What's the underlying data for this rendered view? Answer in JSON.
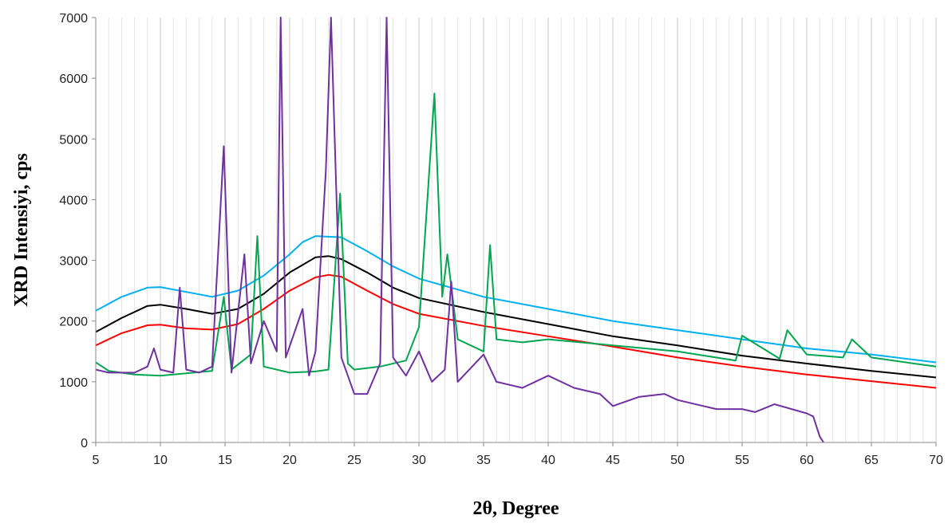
{
  "chart_data": {
    "type": "line",
    "title": "",
    "xlabel": "2θ, Degree",
    "ylabel": "XRD Intensiyi, cps",
    "xlim": [
      5,
      70
    ],
    "ylim": [
      0,
      7000
    ],
    "x_ticks": [
      5,
      10,
      15,
      20,
      25,
      30,
      35,
      40,
      45,
      50,
      55,
      60,
      65,
      70
    ],
    "y_ticks": [
      0,
      1000,
      2000,
      3000,
      4000,
      5000,
      6000,
      7000
    ],
    "x_minor_gridline_step": 1,
    "grid": "vertical",
    "legend": "none",
    "series": [
      {
        "color": "#00b0f0",
        "x": [
          5,
          7,
          9,
          10,
          12,
          14,
          16,
          18,
          20,
          21,
          22,
          24,
          26,
          28,
          30,
          35,
          40,
          45,
          50,
          55,
          60,
          65,
          70
        ],
        "values": [
          2170,
          2400,
          2550,
          2560,
          2480,
          2400,
          2500,
          2750,
          3100,
          3300,
          3400,
          3380,
          3150,
          2900,
          2700,
          2400,
          2200,
          2000,
          1850,
          1700,
          1550,
          1450,
          1320
        ]
      },
      {
        "color": "#000000",
        "x": [
          5,
          7,
          9,
          10,
          12,
          14,
          16,
          18,
          20,
          22,
          23,
          24,
          26,
          28,
          30,
          35,
          40,
          45,
          50,
          55,
          60,
          65,
          70
        ],
        "values": [
          1820,
          2050,
          2250,
          2270,
          2200,
          2120,
          2200,
          2450,
          2800,
          3050,
          3070,
          3020,
          2800,
          2550,
          2380,
          2150,
          1950,
          1750,
          1600,
          1430,
          1300,
          1180,
          1070
        ]
      },
      {
        "color": "#ff0000",
        "x": [
          5,
          7,
          9,
          10,
          12,
          14,
          16,
          18,
          20,
          22,
          23,
          24,
          26,
          28,
          30,
          35,
          40,
          45,
          50,
          55,
          60,
          65,
          70
        ],
        "values": [
          1600,
          1800,
          1930,
          1940,
          1880,
          1860,
          1950,
          2200,
          2500,
          2720,
          2760,
          2730,
          2500,
          2280,
          2120,
          1920,
          1750,
          1580,
          1400,
          1250,
          1120,
          1010,
          900
        ]
      },
      {
        "color": "#00a650",
        "x": [
          5,
          6,
          8,
          10,
          12,
          14,
          14.9,
          15.5,
          17,
          17.5,
          18,
          20,
          22,
          23,
          23.9,
          24.5,
          25,
          27,
          29,
          30,
          31.2,
          31.8,
          32.2,
          33,
          35,
          35.5,
          36,
          38,
          40,
          45,
          50,
          54.5,
          55,
          57.9,
          58.5,
          60,
          62.8,
          63.5,
          65,
          70
        ],
        "values": [
          1320,
          1180,
          1120,
          1100,
          1140,
          1180,
          2400,
          1200,
          1450,
          3400,
          1250,
          1150,
          1170,
          1200,
          4100,
          1300,
          1200,
          1250,
          1350,
          1900,
          5750,
          2400,
          3100,
          1700,
          1500,
          3250,
          1700,
          1650,
          1700,
          1600,
          1500,
          1350,
          1760,
          1380,
          1850,
          1450,
          1400,
          1700,
          1400,
          1250
        ]
      },
      {
        "color": "#7030a0",
        "x": [
          5,
          6,
          8,
          9,
          9.5,
          10,
          11,
          11.5,
          12,
          13,
          14,
          14.9,
          15.5,
          16.5,
          17,
          18,
          19,
          19.3,
          19.7,
          21,
          21.5,
          22,
          22.8,
          23.2,
          24,
          25,
          26,
          27,
          27.5,
          28,
          29,
          30,
          31,
          32,
          32.5,
          33,
          35,
          36,
          38,
          40,
          42,
          44,
          45,
          47,
          49,
          50,
          52,
          53,
          55,
          56,
          57.5,
          60,
          60.5,
          61,
          61.3
        ],
        "values": [
          1200,
          1150,
          1150,
          1250,
          1550,
          1200,
          1150,
          2550,
          1200,
          1150,
          1250,
          4880,
          1150,
          3100,
          1300,
          2000,
          1500,
          7000,
          1400,
          2200,
          1100,
          1500,
          4500,
          7000,
          1400,
          800,
          800,
          1300,
          7000,
          1400,
          1100,
          1500,
          1000,
          1200,
          2650,
          1000,
          1450,
          1000,
          900,
          1100,
          900,
          800,
          600,
          750,
          800,
          700,
          600,
          550,
          550,
          500,
          630,
          480,
          430,
          100,
          0
        ]
      }
    ]
  }
}
